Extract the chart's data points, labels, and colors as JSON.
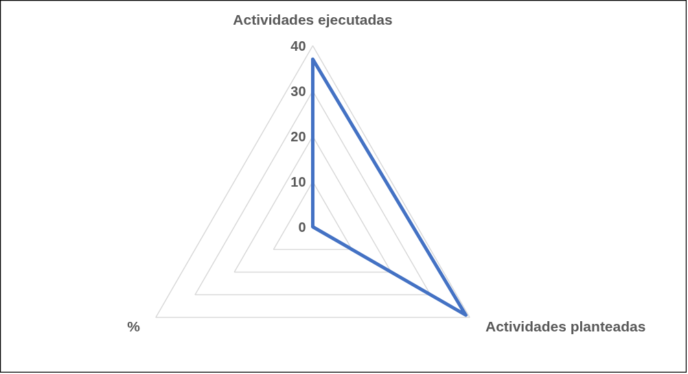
{
  "chart_data": {
    "type": "radar",
    "categories": [
      "Actividades ejecutadas",
      "Actividades planteadas",
      "%"
    ],
    "series": [
      {
        "color": "#4472c4",
        "values": [
          37,
          39,
          0
        ]
      }
    ],
    "ylim": [
      0,
      40
    ],
    "yticks": [
      0,
      10,
      20,
      30,
      40
    ],
    "grid": true
  }
}
